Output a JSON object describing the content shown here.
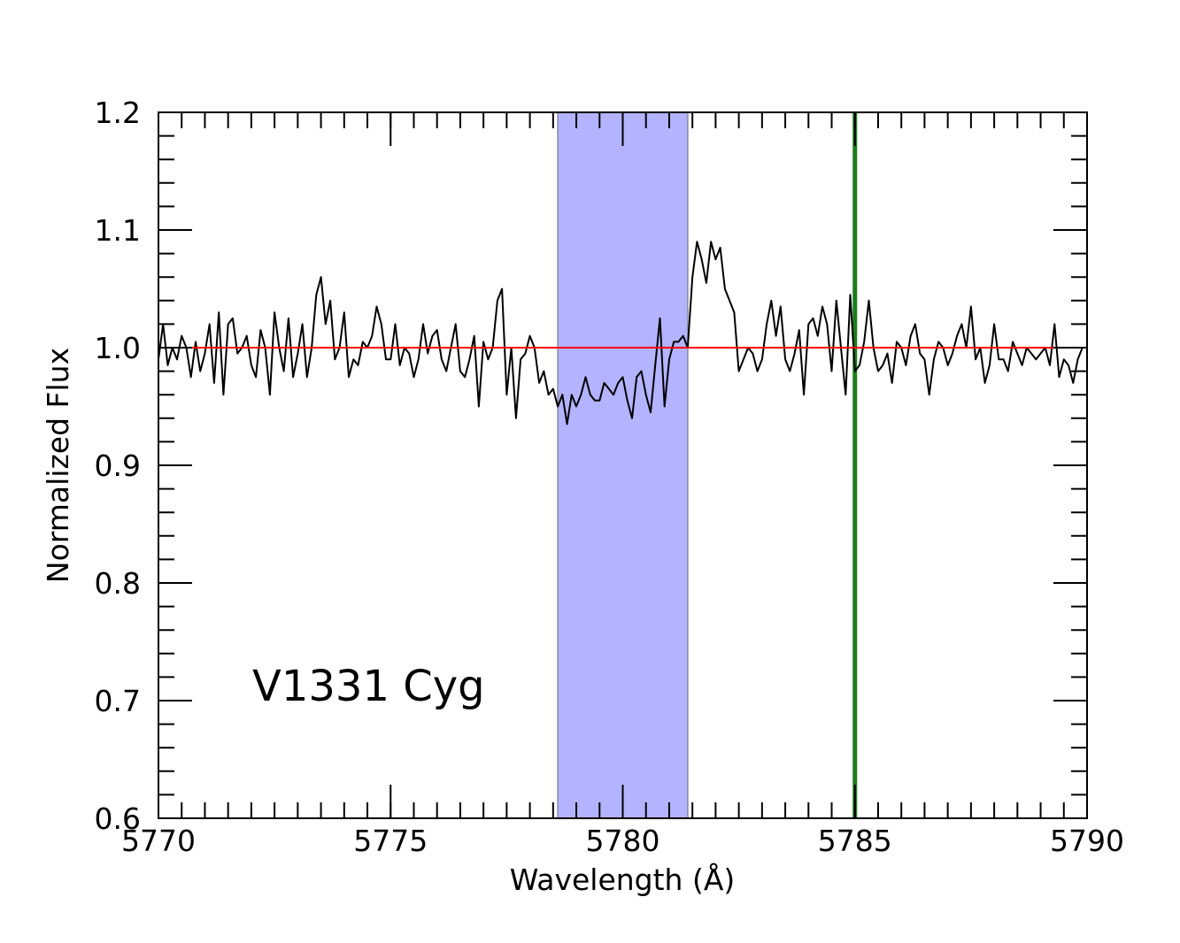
{
  "chart_data": {
    "type": "line",
    "xlabel": "Wavelength (Å)",
    "ylabel": "Normalized Flux",
    "xlim": [
      5770,
      5790
    ],
    "ylim": [
      0.6,
      1.2
    ],
    "x_ticks": [
      5770,
      5775,
      5780,
      5785,
      5790
    ],
    "x_tick_labels": [
      "5770",
      "5775",
      "5780",
      "5785",
      "5790"
    ],
    "y_ticks": [
      0.6,
      0.7,
      0.8,
      0.9,
      1.0,
      1.1,
      1.2
    ],
    "y_tick_labels": [
      "0.6",
      "0.7",
      "0.8",
      "0.9",
      "1.0",
      "1.1",
      "1.2"
    ],
    "x_minor_step": 0.5,
    "y_minor_step": 0.02,
    "annotation": "V1331 Cyg",
    "shaded_region": {
      "x_range": [
        5778.6,
        5781.4
      ],
      "color": "#b3b3ff",
      "edge_color": "#8c8c9e"
    },
    "vertical_line": {
      "x": 5785.0,
      "color": "#1a7d1a"
    },
    "continuum": {
      "y": 1.0,
      "color": "#ff0000"
    },
    "spectrum_color": "#000000",
    "series": [
      {
        "x": [
          5770.0,
          5770.1,
          5770.2,
          5770.3,
          5770.4,
          5770.5,
          5770.6,
          5770.7,
          5770.8,
          5770.9,
          5771.0,
          5771.1,
          5771.2,
          5771.3,
          5771.4,
          5771.5,
          5771.6,
          5771.7,
          5771.8,
          5771.9,
          5772.0,
          5772.1,
          5772.2,
          5772.3,
          5772.4,
          5772.5,
          5772.6,
          5772.7,
          5772.8,
          5772.9,
          5773.0,
          5773.1,
          5773.2,
          5773.3,
          5773.4,
          5773.5,
          5773.6,
          5773.7,
          5773.8,
          5773.9,
          5774.0,
          5774.1,
          5774.2,
          5774.3,
          5774.4,
          5774.5,
          5774.6,
          5774.7,
          5774.8,
          5774.9,
          5775.0,
          5775.1,
          5775.2,
          5775.3,
          5775.4,
          5775.5,
          5775.6,
          5775.7,
          5775.8,
          5775.9,
          5776.0,
          5776.1,
          5776.2,
          5776.3,
          5776.4,
          5776.5,
          5776.6,
          5776.7,
          5776.8,
          5776.9,
          5777.0,
          5777.1,
          5777.2,
          5777.3,
          5777.4,
          5777.5,
          5777.6,
          5777.7,
          5777.8,
          5777.9,
          5778.0,
          5778.1,
          5778.2,
          5778.3,
          5778.4,
          5778.5,
          5778.6,
          5778.7,
          5778.8,
          5778.9,
          5779.0,
          5779.1,
          5779.2,
          5779.3,
          5779.4,
          5779.5,
          5779.6,
          5779.7,
          5779.8,
          5779.9,
          5780.0,
          5780.1,
          5780.2,
          5780.3,
          5780.4,
          5780.5,
          5780.6,
          5780.7,
          5780.8,
          5780.9,
          5781.0,
          5781.1,
          5781.2,
          5781.3,
          5781.4,
          5781.5,
          5781.6,
          5781.7,
          5781.8,
          5781.9,
          5782.0,
          5782.1,
          5782.2,
          5782.3,
          5782.4,
          5782.5,
          5782.6,
          5782.7,
          5782.8,
          5782.9,
          5783.0,
          5783.1,
          5783.2,
          5783.3,
          5783.4,
          5783.5,
          5783.6,
          5783.7,
          5783.8,
          5783.9,
          5784.0,
          5784.1,
          5784.2,
          5784.3,
          5784.4,
          5784.5,
          5784.6,
          5784.7,
          5784.8,
          5784.9,
          5785.0,
          5785.1,
          5785.2,
          5785.3,
          5785.4,
          5785.5,
          5785.6,
          5785.7,
          5785.8,
          5785.9,
          5786.0,
          5786.1,
          5786.2,
          5786.3,
          5786.4,
          5786.5,
          5786.6,
          5786.7,
          5786.8,
          5786.9,
          5787.0,
          5787.1,
          5787.2,
          5787.3,
          5787.4,
          5787.5,
          5787.6,
          5787.7,
          5787.8,
          5787.9,
          5788.0,
          5788.1,
          5788.2,
          5788.3,
          5788.4,
          5788.5,
          5788.6,
          5788.7,
          5788.8,
          5788.9,
          5789.0,
          5789.1,
          5789.2,
          5789.3,
          5789.4,
          5789.5,
          5789.6,
          5789.7,
          5789.8,
          5789.9,
          5790.0
        ],
        "y": [
          0.99,
          1.02,
          0.985,
          1.0,
          0.99,
          1.01,
          1.0,
          0.975,
          1.005,
          0.98,
          0.995,
          1.02,
          0.97,
          1.03,
          0.96,
          1.02,
          1.025,
          0.995,
          1.0,
          1.01,
          0.985,
          0.975,
          1.015,
          1.0,
          0.96,
          1.03,
          1.0,
          0.98,
          1.025,
          0.975,
          0.995,
          1.02,
          0.975,
          1.0,
          1.045,
          1.06,
          1.02,
          1.04,
          0.99,
          1.0,
          1.03,
          0.975,
          0.99,
          0.985,
          1.005,
          1.0,
          1.01,
          1.035,
          1.02,
          0.99,
          0.99,
          1.02,
          0.985,
          1.0,
          0.995,
          0.975,
          0.99,
          1.02,
          0.995,
          1.01,
          1.015,
          0.99,
          0.98,
          1.0,
          1.02,
          0.98,
          0.975,
          0.99,
          1.01,
          0.95,
          1.005,
          0.99,
          1.0,
          1.04,
          1.05,
          0.96,
          1.0,
          0.94,
          0.99,
          0.995,
          1.01,
          1.0,
          0.97,
          0.98,
          0.96,
          0.965,
          0.95,
          0.96,
          0.935,
          0.96,
          0.95,
          0.96,
          0.975,
          0.96,
          0.955,
          0.955,
          0.97,
          0.965,
          0.96,
          0.97,
          0.975,
          0.955,
          0.94,
          0.975,
          0.98,
          0.96,
          0.945,
          0.985,
          1.025,
          0.95,
          0.99,
          1.005,
          1.005,
          1.01,
          1.0,
          1.06,
          1.09,
          1.075,
          1.055,
          1.09,
          1.075,
          1.085,
          1.05,
          1.04,
          1.03,
          0.98,
          0.99,
          1.0,
          0.995,
          0.98,
          0.99,
          1.02,
          1.04,
          1.01,
          1.035,
          0.99,
          0.98,
          0.995,
          1.015,
          0.96,
          1.02,
          1.025,
          1.01,
          1.035,
          1.02,
          0.98,
          1.04,
          1.0,
          0.96,
          1.045,
          0.98,
          0.985,
          1.005,
          1.04,
          1.0,
          0.98,
          0.985,
          0.995,
          0.97,
          1.005,
          1.0,
          0.985,
          1.01,
          1.02,
          0.995,
          0.99,
          0.96,
          0.99,
          1.005,
          1.0,
          0.985,
          0.995,
          1.01,
          1.02,
          1.0,
          1.035,
          0.99,
          1.0,
          0.97,
          0.985,
          1.02,
          0.99,
          0.99,
          0.98,
          1.005,
          0.995,
          0.985,
          1.0,
          0.995,
          0.99,
          0.995,
          1.0,
          0.985,
          1.02,
          0.975,
          0.99,
          0.985,
          0.97,
          0.99,
          1.0,
          1.0
        ]
      }
    ]
  }
}
